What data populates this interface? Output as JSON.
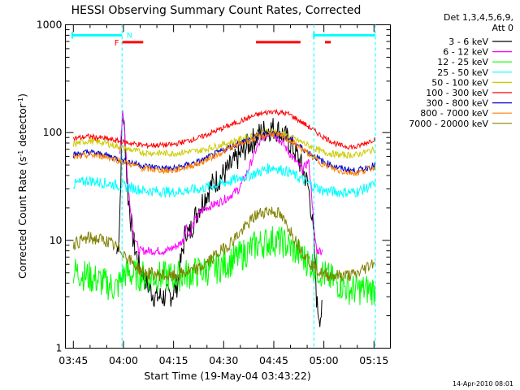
{
  "chart_data": {
    "type": "line",
    "title": "HESSI Observing Summary Count Rates, Corrected",
    "ylabel_main": "Corrected Count Rate (s",
    "ylabel_sup1": "-1",
    "ylabel_mid": " detector",
    "ylabel_sup2": "-1",
    "ylabel_end": ")",
    "xlabel": "Start Time (19-May-04 03:43:22)",
    "footer": "14-Apr-2010 08:01",
    "yscale": "log",
    "ylim": [
      1,
      1000
    ],
    "xlim": [
      "03:43:22",
      "05:22:00"
    ],
    "grid": false,
    "legend_placement": "top-right",
    "y_ticks": [
      1,
      10,
      100,
      1000
    ],
    "y_tick_labels": [
      "1",
      "10",
      "100",
      "1000"
    ],
    "x_ticks": [
      225,
      1125,
      2025,
      2925,
      3825,
      4725,
      5625
    ],
    "x_tick_labels": [
      "03:45",
      "04:00",
      "04:15",
      "04:30",
      "04:45",
      "05:00",
      "05:15"
    ],
    "x_unit": "seconds after 03:42:00",
    "legend_header": [
      "Det 1,3,4,5,6,9,",
      "Att 0"
    ],
    "annotations": {
      "F": {
        "label": "F",
        "x": 1003,
        "color": "#ff0000"
      },
      "N": {
        "label": "N",
        "x": 1100,
        "color": "#00ffff"
      }
    },
    "night_bar": {
      "color": "#00ffff",
      "level": 800,
      "segments": [
        [
          205,
          1100
        ],
        [
          4545,
          5650
        ]
      ]
    },
    "flare_bar": {
      "color": "#ff0000",
      "level": 690,
      "segments": [
        [
          1105,
          1480
        ],
        [
          3505,
          4305
        ],
        [
          4745,
          4850
        ]
      ]
    },
    "dashed_lines": [
      {
        "x": 1100,
        "color": "#00ffff"
      },
      {
        "x": 4545,
        "color": "#00ffff"
      },
      {
        "x": 5650,
        "color": "#00ffff"
      }
    ],
    "series": [
      {
        "name": "3 - 6 keV",
        "color": "#000000",
        "points": [
          [
            1005,
            7.5
          ],
          [
            1050,
            12
          ],
          [
            1098,
            110
          ],
          [
            1110,
            170
          ],
          [
            1150,
            90
          ],
          [
            1200,
            28
          ],
          [
            1300,
            10
          ],
          [
            1400,
            6
          ],
          [
            1500,
            4.5
          ],
          [
            1600,
            3.5
          ],
          [
            1700,
            3
          ],
          [
            1800,
            3
          ],
          [
            1900,
            3
          ],
          [
            2000,
            3.2
          ],
          [
            2100,
            4
          ],
          [
            2150,
            6
          ],
          [
            2250,
            13
          ],
          [
            2300,
            11
          ],
          [
            2400,
            16
          ],
          [
            2500,
            21
          ],
          [
            2600,
            26
          ],
          [
            2700,
            32
          ],
          [
            2800,
            36
          ],
          [
            2900,
            40
          ],
          [
            3000,
            45
          ],
          [
            3100,
            52
          ],
          [
            3200,
            60
          ],
          [
            3300,
            70
          ],
          [
            3400,
            80
          ],
          [
            3500,
            90
          ],
          [
            3600,
            100
          ],
          [
            3700,
            107
          ],
          [
            3800,
            110
          ],
          [
            3900,
            105
          ],
          [
            4000,
            95
          ],
          [
            4100,
            82
          ],
          [
            4200,
            68
          ],
          [
            4300,
            52
          ],
          [
            4400,
            38
          ],
          [
            4450,
            30
          ],
          [
            4500,
            19
          ],
          [
            4550,
            9
          ],
          [
            4600,
            2.5
          ],
          [
            4650,
            2
          ],
          [
            4700,
            2.2
          ]
        ],
        "noise": 0.12
      },
      {
        "name": "6 - 12 keV",
        "color": "#ff00ff",
        "points": [
          [
            1060,
            60
          ],
          [
            1098,
            130
          ],
          [
            1110,
            170
          ],
          [
            1150,
            100
          ],
          [
            1200,
            35
          ],
          [
            1300,
            12
          ],
          [
            1400,
            8
          ],
          [
            1500,
            8
          ],
          [
            1700,
            8
          ],
          [
            1900,
            8
          ],
          [
            2100,
            9
          ],
          [
            2200,
            10
          ],
          [
            2250,
            14
          ],
          [
            2300,
            11
          ],
          [
            2400,
            15
          ],
          [
            2500,
            18
          ],
          [
            2600,
            20
          ],
          [
            2800,
            22
          ],
          [
            3000,
            25
          ],
          [
            3200,
            30
          ],
          [
            3300,
            38
          ],
          [
            3400,
            50
          ],
          [
            3500,
            68
          ],
          [
            3600,
            85
          ],
          [
            3700,
            95
          ],
          [
            3800,
            102
          ],
          [
            3900,
            90
          ],
          [
            4000,
            78
          ],
          [
            4100,
            65
          ],
          [
            4200,
            55
          ],
          [
            4300,
            48
          ],
          [
            4350,
            45
          ],
          [
            4400,
            50
          ],
          [
            4450,
            55
          ],
          [
            4500,
            30
          ],
          [
            4550,
            12
          ],
          [
            4600,
            8
          ],
          [
            4700,
            8
          ]
        ],
        "noise": 0.04
      },
      {
        "name": "12 - 25 keV",
        "color": "#00ff00",
        "points": [
          [
            225,
            5.2
          ],
          [
            600,
            4.4
          ],
          [
            1000,
            3.6
          ],
          [
            1150,
            5
          ],
          [
            1300,
            4.8
          ],
          [
            1600,
            4.6
          ],
          [
            2000,
            4.6
          ],
          [
            2400,
            5
          ],
          [
            2800,
            5.5
          ],
          [
            3200,
            7
          ],
          [
            3500,
            9
          ],
          [
            3800,
            10
          ],
          [
            4000,
            9.5
          ],
          [
            4200,
            8
          ],
          [
            4500,
            6
          ],
          [
            4800,
            4.5
          ],
          [
            5200,
            3.5
          ],
          [
            5650,
            3.5
          ]
        ],
        "noise": 0.15
      },
      {
        "name": "25 - 50 keV",
        "color": "#00ffff",
        "points": [
          [
            225,
            33
          ],
          [
            500,
            36
          ],
          [
            800,
            34
          ],
          [
            1100,
            32
          ],
          [
            1500,
            29
          ],
          [
            2000,
            28
          ],
          [
            2500,
            30
          ],
          [
            3000,
            35
          ],
          [
            3500,
            42
          ],
          [
            3800,
            48
          ],
          [
            4100,
            43
          ],
          [
            4400,
            35
          ],
          [
            4700,
            29
          ],
          [
            5000,
            28
          ],
          [
            5300,
            28
          ],
          [
            5650,
            33
          ]
        ],
        "noise": 0.05
      },
      {
        "name": "50 - 100 keV",
        "color": "#cccc00",
        "points": [
          [
            225,
            78
          ],
          [
            500,
            84
          ],
          [
            800,
            80
          ],
          [
            1100,
            72
          ],
          [
            1500,
            65
          ],
          [
            2000,
            64
          ],
          [
            2500,
            68
          ],
          [
            3000,
            80
          ],
          [
            3500,
            96
          ],
          [
            3800,
            104
          ],
          [
            4100,
            92
          ],
          [
            4400,
            78
          ],
          [
            4700,
            66
          ],
          [
            5000,
            62
          ],
          [
            5300,
            62
          ],
          [
            5650,
            70
          ]
        ],
        "noise": 0.03
      },
      {
        "name": "100 - 300 keV",
        "color": "#ff0000",
        "points": [
          [
            225,
            88
          ],
          [
            500,
            92
          ],
          [
            800,
            88
          ],
          [
            1100,
            82
          ],
          [
            1500,
            76
          ],
          [
            2000,
            77
          ],
          [
            2500,
            90
          ],
          [
            3000,
            115
          ],
          [
            3500,
            145
          ],
          [
            3800,
            158
          ],
          [
            4100,
            148
          ],
          [
            4400,
            118
          ],
          [
            4700,
            92
          ],
          [
            5000,
            76
          ],
          [
            5300,
            73
          ],
          [
            5650,
            88
          ]
        ],
        "noise": 0.025
      },
      {
        "name": "300 - 800 keV",
        "color": "#0000cc",
        "points": [
          [
            225,
            62
          ],
          [
            500,
            66
          ],
          [
            800,
            62
          ],
          [
            1100,
            56
          ],
          [
            1500,
            49
          ],
          [
            2000,
            46
          ],
          [
            2500,
            54
          ],
          [
            3000,
            72
          ],
          [
            3500,
            92
          ],
          [
            3800,
            100
          ],
          [
            4100,
            88
          ],
          [
            4400,
            68
          ],
          [
            4700,
            54
          ],
          [
            5000,
            47
          ],
          [
            5300,
            44
          ],
          [
            5650,
            50
          ]
        ],
        "noise": 0.03
      },
      {
        "name": "800 - 7000 keV",
        "color": "#ff8000",
        "points": [
          [
            225,
            58
          ],
          [
            500,
            62
          ],
          [
            800,
            60
          ],
          [
            1100,
            54
          ],
          [
            1500,
            46
          ],
          [
            2000,
            44
          ],
          [
            2500,
            52
          ],
          [
            3000,
            70
          ],
          [
            3500,
            90
          ],
          [
            3800,
            98
          ],
          [
            4100,
            86
          ],
          [
            4400,
            66
          ],
          [
            4700,
            51
          ],
          [
            5000,
            44
          ],
          [
            5300,
            42
          ],
          [
            5650,
            48
          ]
        ],
        "noise": 0.03
      },
      {
        "name": "7000 - 20000 keV",
        "color": "#808000",
        "points": [
          [
            225,
            9.3
          ],
          [
            500,
            10.5
          ],
          [
            800,
            10
          ],
          [
            1100,
            8
          ],
          [
            1300,
            6
          ],
          [
            1500,
            5
          ],
          [
            2000,
            4.6
          ],
          [
            2500,
            5.5
          ],
          [
            3000,
            9
          ],
          [
            3300,
            13
          ],
          [
            3500,
            17
          ],
          [
            3700,
            19
          ],
          [
            3900,
            18
          ],
          [
            4100,
            13
          ],
          [
            4300,
            8.5
          ],
          [
            4500,
            6
          ],
          [
            4700,
            4.8
          ],
          [
            5000,
            4.7
          ],
          [
            5300,
            4.8
          ],
          [
            5650,
            6.5
          ]
        ],
        "noise": 0.06
      }
    ]
  }
}
